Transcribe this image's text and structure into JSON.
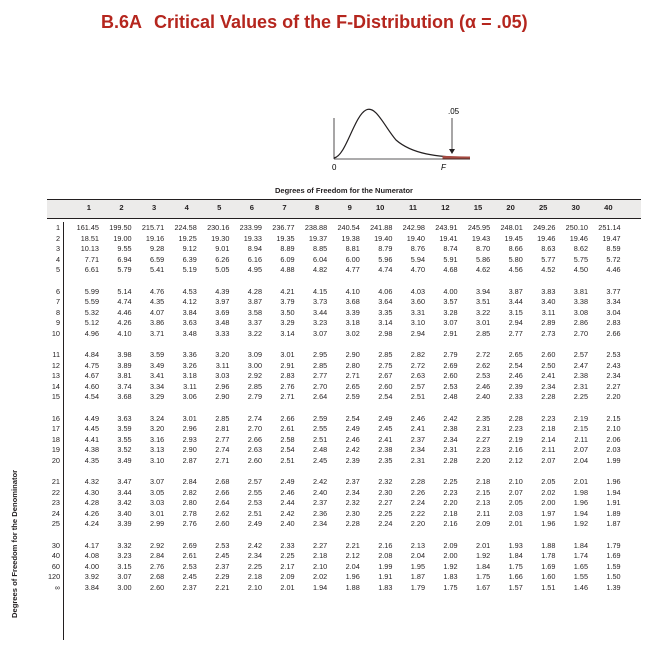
{
  "title": {
    "code": "B.6A",
    "text": "Critical Values of the F-Distribution (α = .05)"
  },
  "figure": {
    "alpha_label": ".05",
    "zero_label": "0",
    "f_label": "F"
  },
  "numerator_caption": "Degrees of Freedom for the Numerator",
  "denominator_caption": "Degrees of Freedom for the Denominator",
  "columns": [
    "1",
    "2",
    "3",
    "4",
    "5",
    "6",
    "7",
    "8",
    "9",
    "10",
    "11",
    "12",
    "15",
    "20",
    "25",
    "30",
    "40"
  ],
  "groups": [
    [
      [
        "1",
        "161.45",
        "199.50",
        "215.71",
        "224.58",
        "230.16",
        "233.99",
        "236.77",
        "238.88",
        "240.54",
        "241.88",
        "242.98",
        "243.91",
        "245.95",
        "248.01",
        "249.26",
        "250.10",
        "251.14"
      ],
      [
        "2",
        "18.51",
        "19.00",
        "19.16",
        "19.25",
        "19.30",
        "19.33",
        "19.35",
        "19.37",
        "19.38",
        "19.40",
        "19.40",
        "19.41",
        "19.43",
        "19.45",
        "19.46",
        "19.46",
        "19.47"
      ],
      [
        "3",
        "10.13",
        "9.55",
        "9.28",
        "9.12",
        "9.01",
        "8.94",
        "8.89",
        "8.85",
        "8.81",
        "8.79",
        "8.76",
        "8.74",
        "8.70",
        "8.66",
        "8.63",
        "8.62",
        "8.59"
      ],
      [
        "4",
        "7.71",
        "6.94",
        "6.59",
        "6.39",
        "6.26",
        "6.16",
        "6.09",
        "6.04",
        "6.00",
        "5.96",
        "5.94",
        "5.91",
        "5.86",
        "5.80",
        "5.77",
        "5.75",
        "5.72"
      ],
      [
        "5",
        "6.61",
        "5.79",
        "5.41",
        "5.19",
        "5.05",
        "4.95",
        "4.88",
        "4.82",
        "4.77",
        "4.74",
        "4.70",
        "4.68",
        "4.62",
        "4.56",
        "4.52",
        "4.50",
        "4.46"
      ]
    ],
    [
      [
        "6",
        "5.99",
        "5.14",
        "4.76",
        "4.53",
        "4.39",
        "4.28",
        "4.21",
        "4.15",
        "4.10",
        "4.06",
        "4.03",
        "4.00",
        "3.94",
        "3.87",
        "3.83",
        "3.81",
        "3.77"
      ],
      [
        "7",
        "5.59",
        "4.74",
        "4.35",
        "4.12",
        "3.97",
        "3.87",
        "3.79",
        "3.73",
        "3.68",
        "3.64",
        "3.60",
        "3.57",
        "3.51",
        "3.44",
        "3.40",
        "3.38",
        "3.34"
      ],
      [
        "8",
        "5.32",
        "4.46",
        "4.07",
        "3.84",
        "3.69",
        "3.58",
        "3.50",
        "3.44",
        "3.39",
        "3.35",
        "3.31",
        "3.28",
        "3.22",
        "3.15",
        "3.11",
        "3.08",
        "3.04"
      ],
      [
        "9",
        "5.12",
        "4.26",
        "3.86",
        "3.63",
        "3.48",
        "3.37",
        "3.29",
        "3.23",
        "3.18",
        "3.14",
        "3.10",
        "3.07",
        "3.01",
        "2.94",
        "2.89",
        "2.86",
        "2.83"
      ],
      [
        "10",
        "4.96",
        "4.10",
        "3.71",
        "3.48",
        "3.33",
        "3.22",
        "3.14",
        "3.07",
        "3.02",
        "2.98",
        "2.94",
        "2.91",
        "2.85",
        "2.77",
        "2.73",
        "2.70",
        "2.66"
      ]
    ],
    [
      [
        "11",
        "4.84",
        "3.98",
        "3.59",
        "3.36",
        "3.20",
        "3.09",
        "3.01",
        "2.95",
        "2.90",
        "2.85",
        "2.82",
        "2.79",
        "2.72",
        "2.65",
        "2.60",
        "2.57",
        "2.53"
      ],
      [
        "12",
        "4.75",
        "3.89",
        "3.49",
        "3.26",
        "3.11",
        "3.00",
        "2.91",
        "2.85",
        "2.80",
        "2.75",
        "2.72",
        "2.69",
        "2.62",
        "2.54",
        "2.50",
        "2.47",
        "2.43"
      ],
      [
        "13",
        "4.67",
        "3.81",
        "3.41",
        "3.18",
        "3.03",
        "2.92",
        "2.83",
        "2.77",
        "2.71",
        "2.67",
        "2.63",
        "2.60",
        "2.53",
        "2.46",
        "2.41",
        "2.38",
        "2.34"
      ],
      [
        "14",
        "4.60",
        "3.74",
        "3.34",
        "3.11",
        "2.96",
        "2.85",
        "2.76",
        "2.70",
        "2.65",
        "2.60",
        "2.57",
        "2.53",
        "2.46",
        "2.39",
        "2.34",
        "2.31",
        "2.27"
      ],
      [
        "15",
        "4.54",
        "3.68",
        "3.29",
        "3.06",
        "2.90",
        "2.79",
        "2.71",
        "2.64",
        "2.59",
        "2.54",
        "2.51",
        "2.48",
        "2.40",
        "2.33",
        "2.28",
        "2.25",
        "2.20"
      ]
    ],
    [
      [
        "16",
        "4.49",
        "3.63",
        "3.24",
        "3.01",
        "2.85",
        "2.74",
        "2.66",
        "2.59",
        "2.54",
        "2.49",
        "2.46",
        "2.42",
        "2.35",
        "2.28",
        "2.23",
        "2.19",
        "2.15"
      ],
      [
        "17",
        "4.45",
        "3.59",
        "3.20",
        "2.96",
        "2.81",
        "2.70",
        "2.61",
        "2.55",
        "2.49",
        "2.45",
        "2.41",
        "2.38",
        "2.31",
        "2.23",
        "2.18",
        "2.15",
        "2.10"
      ],
      [
        "18",
        "4.41",
        "3.55",
        "3.16",
        "2.93",
        "2.77",
        "2.66",
        "2.58",
        "2.51",
        "2.46",
        "2.41",
        "2.37",
        "2.34",
        "2.27",
        "2.19",
        "2.14",
        "2.11",
        "2.06"
      ],
      [
        "19",
        "4.38",
        "3.52",
        "3.13",
        "2.90",
        "2.74",
        "2.63",
        "2.54",
        "2.48",
        "2.42",
        "2.38",
        "2.34",
        "2.31",
        "2.23",
        "2.16",
        "2.11",
        "2.07",
        "2.03"
      ],
      [
        "20",
        "4.35",
        "3.49",
        "3.10",
        "2.87",
        "2.71",
        "2.60",
        "2.51",
        "2.45",
        "2.39",
        "2.35",
        "2.31",
        "2.28",
        "2.20",
        "2.12",
        "2.07",
        "2.04",
        "1.99"
      ]
    ],
    [
      [
        "21",
        "4.32",
        "3.47",
        "3.07",
        "2.84",
        "2.68",
        "2.57",
        "2.49",
        "2.42",
        "2.37",
        "2.32",
        "2.28",
        "2.25",
        "2.18",
        "2.10",
        "2.05",
        "2.01",
        "1.96"
      ],
      [
        "22",
        "4.30",
        "3.44",
        "3.05",
        "2.82",
        "2.66",
        "2.55",
        "2.46",
        "2.40",
        "2.34",
        "2.30",
        "2.26",
        "2.23",
        "2.15",
        "2.07",
        "2.02",
        "1.98",
        "1.94"
      ],
      [
        "23",
        "4.28",
        "3.42",
        "3.03",
        "2.80",
        "2.64",
        "2.53",
        "2.44",
        "2.37",
        "2.32",
        "2.27",
        "2.24",
        "2.20",
        "2.13",
        "2.05",
        "2.00",
        "1.96",
        "1.91"
      ],
      [
        "24",
        "4.26",
        "3.40",
        "3.01",
        "2.78",
        "2.62",
        "2.51",
        "2.42",
        "2.36",
        "2.30",
        "2.25",
        "2.22",
        "2.18",
        "2.11",
        "2.03",
        "1.97",
        "1.94",
        "1.89"
      ],
      [
        "25",
        "4.24",
        "3.39",
        "2.99",
        "2.76",
        "2.60",
        "2.49",
        "2.40",
        "2.34",
        "2.28",
        "2.24",
        "2.20",
        "2.16",
        "2.09",
        "2.01",
        "1.96",
        "1.92",
        "1.87"
      ]
    ],
    [
      [
        "30",
        "4.17",
        "3.32",
        "2.92",
        "2.69",
        "2.53",
        "2.42",
        "2.33",
        "2.27",
        "2.21",
        "2.16",
        "2.13",
        "2.09",
        "2.01",
        "1.93",
        "1.88",
        "1.84",
        "1.79"
      ],
      [
        "40",
        "4.08",
        "3.23",
        "2.84",
        "2.61",
        "2.45",
        "2.34",
        "2.25",
        "2.18",
        "2.12",
        "2.08",
        "2.04",
        "2.00",
        "1.92",
        "1.84",
        "1.78",
        "1.74",
        "1.69"
      ],
      [
        "60",
        "4.00",
        "3.15",
        "2.76",
        "2.53",
        "2.37",
        "2.25",
        "2.17",
        "2.10",
        "2.04",
        "1.99",
        "1.95",
        "1.92",
        "1.84",
        "1.75",
        "1.69",
        "1.65",
        "1.59"
      ],
      [
        "120",
        "3.92",
        "3.07",
        "2.68",
        "2.45",
        "2.29",
        "2.18",
        "2.09",
        "2.02",
        "1.96",
        "1.91",
        "1.87",
        "1.83",
        "1.75",
        "1.66",
        "1.60",
        "1.55",
        "1.50"
      ],
      [
        "∞",
        "3.84",
        "3.00",
        "2.60",
        "2.37",
        "2.21",
        "2.10",
        "2.01",
        "1.94",
        "1.88",
        "1.83",
        "1.79",
        "1.75",
        "1.67",
        "1.57",
        "1.51",
        "1.46",
        "1.39"
      ]
    ]
  ]
}
